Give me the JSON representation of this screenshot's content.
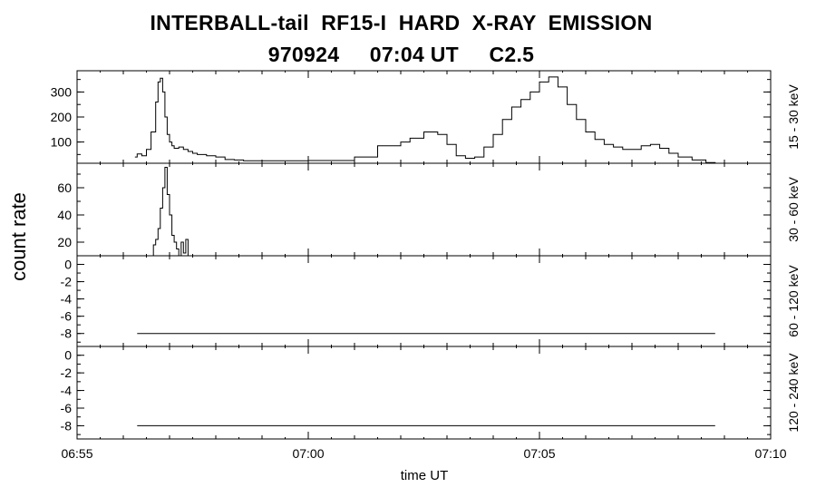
{
  "header": {
    "title": "INTERBALL-tail  RF15-I  HARD  X-RAY  EMISSION",
    "subtitle": "970924     07:04 UT     C2.5"
  },
  "chart_data": {
    "type": "line",
    "ylabel": "count rate",
    "xlabel": "time UT",
    "x_ticks": [
      "06:55",
      "07:00",
      "07:05",
      "07:10"
    ],
    "x_range_minutes": [
      0,
      15
    ],
    "panels": [
      {
        "name": "15 - 30 keV",
        "ylim": [
          15,
          385
        ],
        "ytick_labels": [
          "100",
          "200",
          "300"
        ],
        "ytick_values": [
          100,
          200,
          300
        ],
        "series": {
          "x": [
            1.25,
            1.3,
            1.4,
            1.5,
            1.6,
            1.7,
            1.75,
            1.8,
            1.85,
            1.9,
            1.95,
            2.0,
            2.05,
            2.1,
            2.2,
            2.3,
            2.4,
            2.5,
            2.6,
            2.8,
            3.0,
            3.2,
            3.4,
            3.6,
            3.8,
            4.0,
            4.3,
            4.6,
            5.0,
            5.5,
            6.0,
            6.5,
            7.0,
            7.2,
            7.5,
            7.8,
            8.0,
            8.2,
            8.4,
            8.6,
            8.8,
            9.0,
            9.2,
            9.4,
            9.6,
            9.8,
            10.0,
            10.2,
            10.4,
            10.6,
            10.8,
            11.0,
            11.2,
            11.4,
            11.6,
            11.8,
            12.0,
            12.2,
            12.4,
            12.6,
            12.8,
            13.0,
            13.3,
            13.6,
            13.8
          ],
          "y": [
            40,
            52,
            45,
            70,
            140,
            260,
            340,
            355,
            300,
            200,
            130,
            100,
            85,
            75,
            80,
            70,
            62,
            55,
            50,
            45,
            40,
            30,
            28,
            25,
            25,
            25,
            25,
            25,
            26,
            26,
            40,
            85,
            100,
            115,
            140,
            130,
            90,
            45,
            35,
            40,
            80,
            130,
            190,
            240,
            270,
            300,
            340,
            360,
            320,
            250,
            190,
            140,
            110,
            90,
            80,
            70,
            70,
            85,
            90,
            75,
            55,
            40,
            28,
            18,
            15
          ]
        }
      },
      {
        "name": "30 - 60 keV",
        "ylim": [
          10,
          78
        ],
        "ytick_labels": [
          "20",
          "40",
          "60"
        ],
        "ytick_values": [
          20,
          40,
          60
        ],
        "series": {
          "x": [
            1.6,
            1.65,
            1.7,
            1.75,
            1.8,
            1.85,
            1.9,
            1.95,
            2.0,
            2.05,
            2.1,
            2.15,
            2.2,
            2.25,
            2.3,
            2.35,
            2.4
          ],
          "y": [
            10,
            18,
            22,
            30,
            45,
            60,
            75,
            55,
            40,
            25,
            20,
            15,
            10,
            20,
            12,
            22,
            10
          ]
        }
      },
      {
        "name": "60 - 120 keV",
        "ylim": [
          -9.5,
          1
        ],
        "ytick_labels": [
          "-8",
          "-6",
          "-4",
          "-2",
          "0"
        ],
        "ytick_values": [
          -8,
          -6,
          -4,
          -2,
          0
        ],
        "series": {
          "x": [
            1.3,
            13.8
          ],
          "y": [
            -8.0,
            -8.0
          ]
        }
      },
      {
        "name": "120 - 240 keV",
        "ylim": [
          -9.5,
          1
        ],
        "ytick_labels": [
          "-8",
          "-6",
          "-4",
          "-2",
          "0"
        ],
        "ytick_values": [
          -8,
          -6,
          -4,
          -2,
          0
        ],
        "series": {
          "x": [
            1.3,
            13.8
          ],
          "y": [
            -8.0,
            -8.0
          ]
        }
      }
    ]
  }
}
